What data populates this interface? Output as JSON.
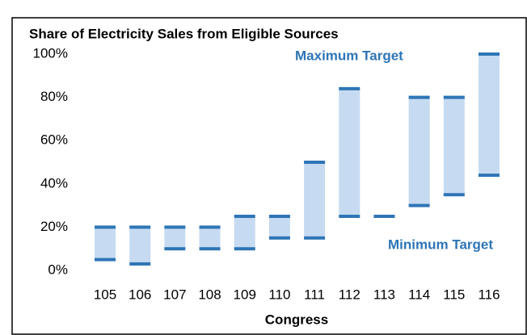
{
  "chart_data": {
    "type": "range_bar",
    "title": "Share of Electricity Sales from Eligible Sources",
    "x_label": "Congress",
    "categories": [
      "105",
      "106",
      "107",
      "108",
      "109",
      "110",
      "111",
      "112",
      "113",
      "114",
      "115",
      "116"
    ],
    "series": [
      {
        "name": "Minimum Target",
        "color": "#2e75b6",
        "values": [
          5,
          3,
          10,
          10,
          10,
          15,
          15,
          25,
          25,
          30,
          35,
          44
        ]
      },
      {
        "name": "Maximum Target",
        "color": "#2e75b6",
        "values": [
          20,
          20,
          20,
          20,
          25,
          25,
          50,
          84,
          25,
          80,
          80,
          100
        ]
      }
    ],
    "range_color": "#c6dbf1",
    "ylim": [
      0,
      100
    ],
    "yticks": [
      {
        "value": 0,
        "label": "0%"
      },
      {
        "value": 20,
        "label": "20%"
      },
      {
        "value": 40,
        "label": "40%"
      },
      {
        "value": 60,
        "label": "60%"
      },
      {
        "value": 80,
        "label": "80%"
      },
      {
        "value": 100,
        "label": "100%"
      }
    ]
  }
}
